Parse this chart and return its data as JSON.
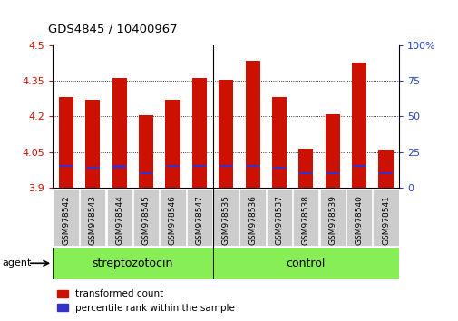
{
  "title": "GDS4845 / 10400967",
  "samples": [
    "GSM978542",
    "GSM978543",
    "GSM978544",
    "GSM978545",
    "GSM978546",
    "GSM978547",
    "GSM978535",
    "GSM978536",
    "GSM978537",
    "GSM978538",
    "GSM978539",
    "GSM978540",
    "GSM978541"
  ],
  "red_values": [
    4.28,
    4.27,
    4.36,
    4.205,
    4.27,
    4.36,
    4.355,
    4.432,
    4.28,
    4.065,
    4.21,
    4.425,
    4.06
  ],
  "blue_values": [
    3.992,
    3.985,
    3.99,
    3.96,
    3.991,
    3.991,
    3.991,
    3.991,
    3.985,
    3.96,
    3.962,
    3.992,
    3.96
  ],
  "ymin": 3.9,
  "ymax": 4.5,
  "yticks_left": [
    3.9,
    4.05,
    4.2,
    4.35,
    4.5
  ],
  "yticks_right": [
    0,
    25,
    50,
    75,
    100
  ],
  "bar_color_red": "#cc1100",
  "bar_color_blue": "#3333cc",
  "bar_width": 0.55,
  "strep_count": 6,
  "ctrl_count": 7,
  "group_label_strep": "streptozotocin",
  "group_label_ctrl": "control",
  "agent_label": "agent",
  "legend_red": "transformed count",
  "legend_blue": "percentile rank within the sample",
  "tick_color_left": "#cc1100",
  "tick_color_right": "#2244cc",
  "plot_bg": "#ffffff",
  "sample_bg": "#cccccc",
  "group_bg": "#88ee55",
  "grid_color": "#000000",
  "separator_idx": 6
}
